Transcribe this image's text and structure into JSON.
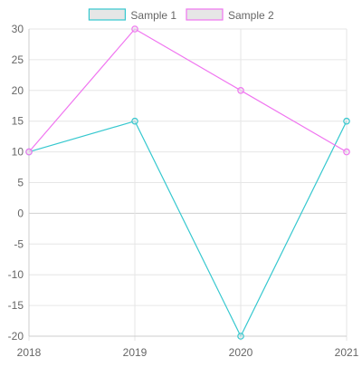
{
  "chart_data": {
    "type": "line",
    "x": [
      "2018",
      "2019",
      "2020",
      "2021"
    ],
    "series": [
      {
        "name": "Sample 1",
        "values": [
          10,
          15,
          -20,
          15
        ],
        "color": "#36c8cf",
        "fill": "#e6e6e6"
      },
      {
        "name": "Sample 2",
        "values": [
          10,
          30,
          20,
          10
        ],
        "color": "#f075f0",
        "fill": "#e6e6e6"
      }
    ],
    "ylim": [
      -20,
      30
    ],
    "y_ticks": [
      30,
      25,
      20,
      15,
      10,
      5,
      0,
      -5,
      -10,
      -15,
      -20
    ],
    "grid": true,
    "legend": "top-center"
  }
}
